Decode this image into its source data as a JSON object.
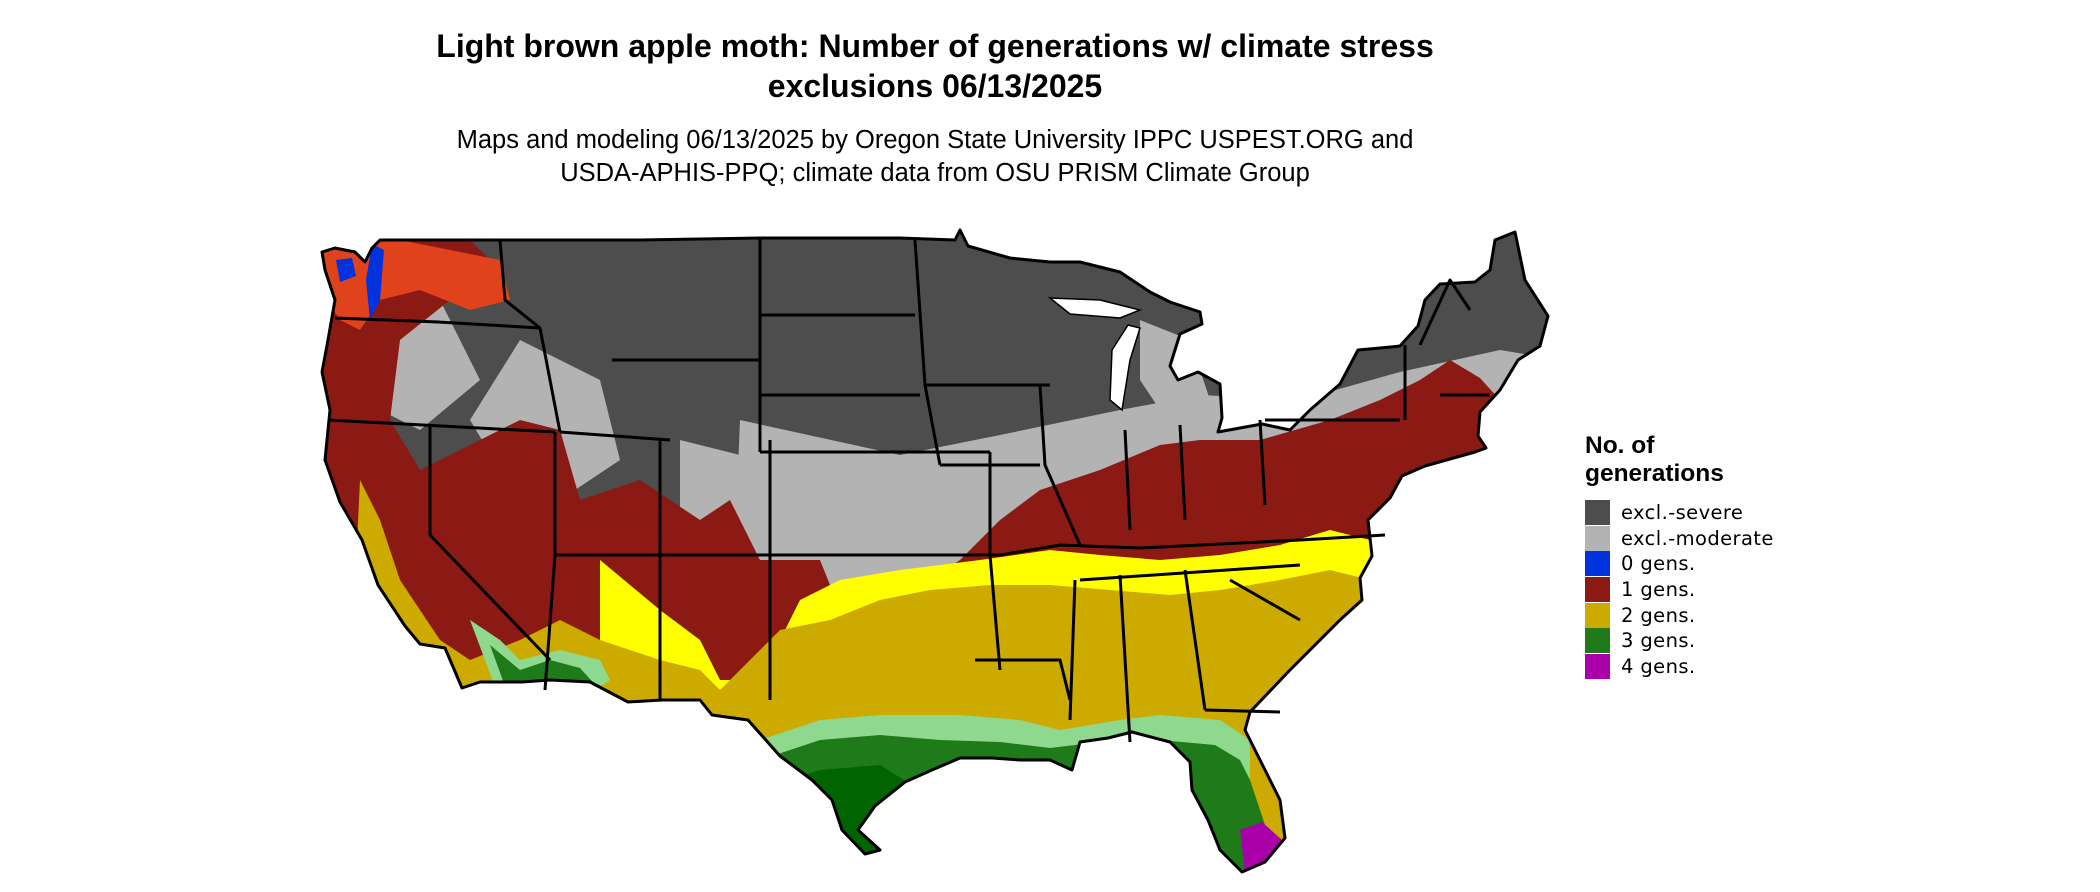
{
  "title": {
    "line1": "Light brown apple moth: Number of generations w/ climate stress",
    "line2": "exclusions 06/13/2025"
  },
  "subtitle": {
    "line1": "Maps and modeling 06/13/2025 by Oregon State University IPPC USPEST.ORG and",
    "line2": "USDA-APHIS-PPQ; climate data from OSU PRISM Climate Group"
  },
  "legend": {
    "title_line1": "No. of",
    "title_line2": "generations",
    "placement": "right",
    "items": [
      {
        "label": "excl.-severe",
        "color": "#4d4d4d"
      },
      {
        "label": "excl.-moderate",
        "color": "#b3b3b3"
      },
      {
        "label": "0 gens.",
        "color": "#0033dd"
      },
      {
        "label": "1 gens.",
        "color": "#8b1a14"
      },
      {
        "label": "2 gens.",
        "color": "#ccaa00"
      },
      {
        "label": "3 gens.",
        "color": "#1f7a1a"
      },
      {
        "label": "4 gens.",
        "color": "#aa00aa"
      }
    ]
  },
  "map": {
    "region": "Contiguous United States",
    "state_outline_color": "#000000",
    "accent_colors": {
      "coastal_red": "#e0421c",
      "bright_yellow": "#ffff00",
      "light_green": "#8fd98f",
      "dark_green": "#006400"
    }
  }
}
